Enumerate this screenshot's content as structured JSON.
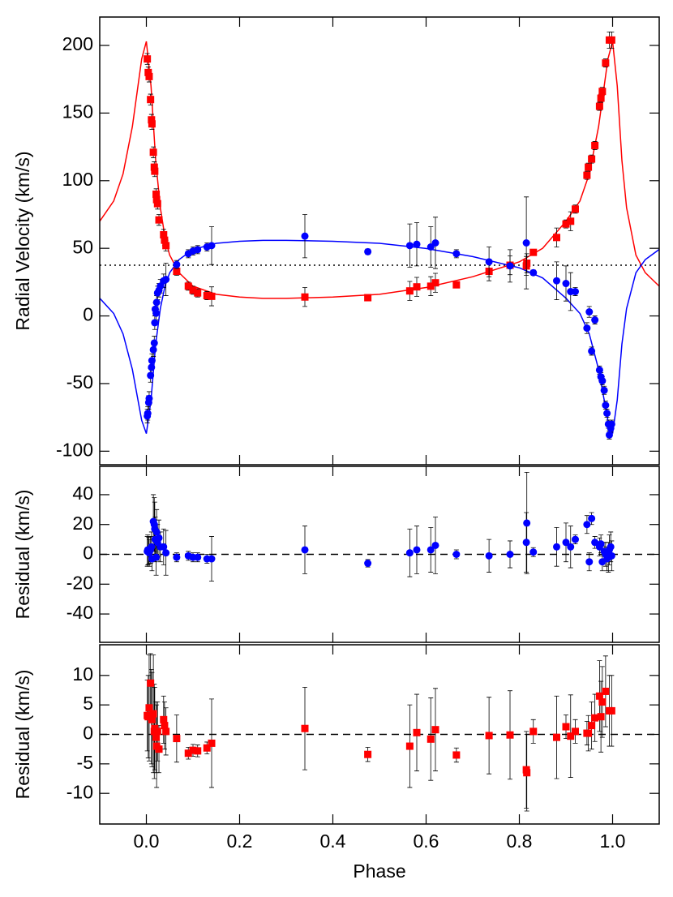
{
  "chart_data": [
    {
      "type": "scatter",
      "ylabel": "Radial Velocity (km/s)",
      "xlim": [
        -0.1,
        1.1
      ],
      "ylim": [
        -110,
        221
      ],
      "yticks": [
        -100,
        -50,
        0,
        50,
        100,
        150,
        200
      ],
      "hline": {
        "value": 37.5,
        "style": "dotted"
      },
      "series": [
        {
          "type": "line",
          "color": "#ff0000",
          "x": [
            -0.1,
            -0.07,
            -0.05,
            -0.03,
            -0.02,
            -0.01,
            0.0,
            0.01,
            0.02,
            0.03,
            0.04,
            0.05,
            0.07,
            0.1,
            0.15,
            0.2,
            0.25,
            0.3,
            0.4,
            0.5,
            0.6,
            0.7,
            0.8,
            0.85,
            0.9,
            0.93,
            0.95,
            0.97,
            0.98,
            0.99,
            1.0,
            1.01,
            1.02,
            1.03,
            1.05,
            1.07,
            1.1
          ],
          "values": [
            70,
            85,
            105,
            140,
            165,
            190,
            203,
            170,
            115,
            80,
            58,
            45,
            32,
            22,
            16,
            14,
            13,
            13,
            14,
            16,
            21,
            29,
            40,
            50,
            70,
            85,
            105,
            140,
            165,
            190,
            203,
            170,
            115,
            80,
            45,
            32,
            22
          ]
        },
        {
          "type": "line",
          "color": "#0000ff",
          "x": [
            -0.1,
            -0.07,
            -0.05,
            -0.03,
            -0.02,
            -0.01,
            0.0,
            0.01,
            0.02,
            0.03,
            0.04,
            0.05,
            0.07,
            0.1,
            0.15,
            0.2,
            0.25,
            0.3,
            0.4,
            0.5,
            0.6,
            0.7,
            0.8,
            0.85,
            0.9,
            0.93,
            0.95,
            0.97,
            0.98,
            0.99,
            1.0,
            1.01,
            1.02,
            1.03,
            1.05,
            1.07,
            1.1
          ],
          "values": [
            13.1,
            1.8,
            -13.3,
            -39.6,
            -58.4,
            -77.2,
            -87.0,
            -62.1,
            -20.8,
            5.5,
            22.1,
            31.9,
            41.6,
            49.2,
            53.7,
            55.2,
            55.9,
            55.9,
            55.2,
            53.7,
            49.9,
            43.9,
            35.6,
            28.1,
            13.1,
            1.8,
            -13.3,
            -39.6,
            -58.4,
            -77.2,
            -87.0,
            -62.1,
            -20.8,
            5.5,
            31.9,
            41.6,
            49.2
          ]
        },
        {
          "type": "scatter",
          "marker": "square",
          "color": "#ff0000",
          "x": [
            0.002,
            0.004,
            0.006,
            0.009,
            0.011,
            0.012,
            0.015,
            0.017,
            0.018,
            0.021,
            0.022,
            0.024,
            0.027,
            0.037,
            0.039,
            0.042,
            0.065,
            0.09,
            0.1,
            0.11,
            0.13,
            0.14,
            0.34,
            0.475,
            0.565,
            0.58,
            0.61,
            0.62,
            0.665,
            0.735,
            0.78,
            0.815,
            0.816,
            0.83,
            0.88,
            0.9,
            0.91,
            0.92,
            0.945,
            0.948,
            0.955,
            0.962,
            0.972,
            0.975,
            0.978,
            0.985,
            0.993,
            0.998
          ],
          "values": [
            190,
            180,
            177,
            160,
            145,
            142,
            121,
            110,
            107,
            90,
            86,
            83,
            71,
            60,
            56,
            52,
            33,
            22,
            19,
            17,
            15,
            14.5,
            14,
            13.5,
            18.5,
            21.5,
            22,
            24.5,
            23,
            33,
            37.5,
            37,
            39,
            47,
            58,
            68,
            70,
            79,
            104,
            110,
            116,
            126,
            155,
            161,
            166,
            187,
            204,
            204
          ],
          "errors": [
            4,
            4,
            4,
            4,
            4,
            4,
            4,
            4,
            4,
            4,
            4,
            4,
            4,
            4,
            4,
            4,
            3,
            3,
            3,
            3,
            3,
            7,
            7,
            2,
            7,
            7,
            7,
            7,
            2,
            7,
            7,
            7,
            7,
            2,
            7,
            3,
            7,
            3,
            3,
            3,
            3,
            3,
            3,
            3,
            3,
            3,
            6,
            6
          ]
        },
        {
          "type": "scatter",
          "marker": "circle",
          "color": "#0000ff",
          "x": [
            0.002,
            0.003,
            0.005,
            0.006,
            0.009,
            0.011,
            0.012,
            0.015,
            0.017,
            0.018,
            0.019,
            0.021,
            0.022,
            0.024,
            0.027,
            0.03,
            0.037,
            0.042,
            0.065,
            0.09,
            0.1,
            0.11,
            0.13,
            0.14,
            0.34,
            0.475,
            0.565,
            0.58,
            0.61,
            0.62,
            0.665,
            0.735,
            0.78,
            0.815,
            0.83,
            0.88,
            0.9,
            0.91,
            0.92,
            0.945,
            0.95,
            0.955,
            0.962,
            0.972,
            0.975,
            0.978,
            0.982,
            0.985,
            0.988,
            0.991,
            0.993,
            0.996,
            0.998
          ],
          "values": [
            -74,
            -72,
            -64,
            -61,
            -44,
            -38,
            -33,
            -25,
            -20,
            -5,
            5,
            2,
            10,
            17,
            19,
            22,
            26,
            27,
            38,
            46,
            48,
            49,
            51,
            52,
            59,
            47.5,
            52,
            53,
            51,
            54,
            46,
            40,
            37,
            54,
            32,
            26,
            24,
            18,
            18,
            -9,
            3,
            -26,
            -3,
            -40,
            -45,
            -48,
            -55,
            -66,
            -72,
            -80,
            -88,
            -83,
            -80
          ],
          "errors": [
            5,
            5,
            5,
            5,
            5,
            5,
            5,
            5,
            5,
            5,
            5,
            5,
            5,
            5,
            5,
            5,
            5,
            12,
            3,
            3,
            3,
            3,
            3,
            14,
            16,
            2,
            16,
            16,
            15,
            19,
            3,
            11,
            12,
            34,
            2,
            14,
            13,
            14,
            3,
            4,
            4,
            3,
            3,
            3,
            3,
            3,
            3,
            3,
            3,
            3,
            3,
            3,
            3
          ]
        }
      ]
    },
    {
      "type": "scatter",
      "ylabel": "Residual (km/s)",
      "xlim": [
        -0.1,
        1.1
      ],
      "ylim": [
        -59,
        59
      ],
      "yticks": [
        -40,
        -20,
        0,
        20,
        40
      ],
      "hline": {
        "value": 0,
        "style": "dashed"
      },
      "series": [
        {
          "type": "scatter",
          "marker": "circle",
          "color": "#0000ff",
          "x": [
            0.002,
            0.003,
            0.005,
            0.006,
            0.009,
            0.011,
            0.012,
            0.015,
            0.017,
            0.018,
            0.019,
            0.021,
            0.022,
            0.024,
            0.027,
            0.03,
            0.037,
            0.042,
            0.065,
            0.09,
            0.1,
            0.11,
            0.13,
            0.14,
            0.34,
            0.475,
            0.565,
            0.58,
            0.61,
            0.62,
            0.665,
            0.735,
            0.78,
            0.815,
            0.816,
            0.83,
            0.88,
            0.9,
            0.91,
            0.92,
            0.945,
            0.95,
            0.955,
            0.962,
            0.972,
            0.975,
            0.978,
            0.982,
            0.985,
            0.988,
            0.991,
            0.993,
            0.996,
            0.998
          ],
          "values": [
            2,
            3,
            2.5,
            1,
            3,
            5,
            -3,
            22,
            20,
            17,
            10,
            -2,
            15,
            8,
            11,
            5,
            5,
            1,
            -2,
            -1,
            -2,
            -2,
            -3,
            -3,
            3,
            -6,
            1,
            3,
            3,
            6,
            0,
            -1,
            0,
            8,
            21,
            1.5,
            5,
            8,
            5,
            10,
            20,
            -5,
            24,
            8,
            5,
            7,
            -5,
            2,
            0,
            -3,
            -2,
            3,
            5,
            -1
          ],
          "errors": [
            10,
            10,
            9,
            9,
            9,
            10,
            8,
            18,
            18,
            18,
            15,
            12,
            15,
            12,
            12,
            10,
            12,
            15,
            3,
            3,
            3,
            3,
            3,
            15,
            16,
            2.5,
            16,
            16,
            15,
            19,
            3,
            11,
            9,
            20,
            34,
            3,
            13,
            13,
            14,
            3,
            6,
            6,
            4,
            4,
            6,
            6,
            6,
            6,
            8,
            8,
            10,
            10,
            10,
            10
          ]
        }
      ]
    },
    {
      "type": "scatter",
      "ylabel": "Residual (km/s)",
      "xlabel": "Phase",
      "xlim": [
        -0.1,
        1.1
      ],
      "ylim": [
        -15.2,
        15.2
      ],
      "xticks": [
        {
          "value": 0,
          "label": "0.0"
        },
        0.2,
        0.4,
        0.6,
        0.8,
        {
          "value": 1,
          "label": "1.0"
        }
      ],
      "yticks": [
        -10,
        -5,
        0,
        5,
        10
      ],
      "hline": {
        "value": 0,
        "style": "dashed"
      },
      "series": [
        {
          "type": "scatter",
          "marker": "square",
          "color": "#ff0000",
          "x": [
            0.002,
            0.004,
            0.006,
            0.009,
            0.011,
            0.012,
            0.015,
            0.017,
            0.018,
            0.021,
            0.022,
            0.024,
            0.027,
            0.037,
            0.039,
            0.042,
            0.065,
            0.09,
            0.1,
            0.11,
            0.13,
            0.14,
            0.34,
            0.475,
            0.565,
            0.58,
            0.61,
            0.62,
            0.665,
            0.735,
            0.78,
            0.815,
            0.816,
            0.83,
            0.88,
            0.9,
            0.91,
            0.92,
            0.945,
            0.948,
            0.955,
            0.962,
            0.972,
            0.975,
            0.978,
            0.985,
            0.993,
            0.998
          ],
          "values": [
            3.2,
            3,
            4.5,
            8.7,
            3,
            2.5,
            3.5,
            0.5,
            1,
            -0.5,
            -2,
            0.5,
            -2.5,
            2.5,
            1.5,
            0.5,
            -0.7,
            -3.2,
            -2.7,
            -2.8,
            -2.3,
            -1.5,
            1,
            -3.4,
            -2,
            0.3,
            -0.8,
            0.8,
            -3.5,
            -0.2,
            -0.1,
            -6,
            -6.5,
            0.5,
            -0.5,
            1.3,
            -0.3,
            0.5,
            0.2,
            0.2,
            1.5,
            2.8,
            6.5,
            3,
            5.5,
            7.3,
            4,
            4
          ],
          "errors": [
            6,
            7,
            9,
            5,
            8,
            8,
            10,
            8,
            7,
            6,
            7,
            5,
            4,
            4,
            4,
            4,
            4,
            1,
            1,
            1,
            1,
            7.5,
            7,
            1.2,
            7,
            6.5,
            7,
            7,
            1.2,
            6.5,
            7.5,
            6.5,
            6.5,
            2,
            7,
            2,
            7,
            2,
            2,
            3,
            4,
            4,
            6,
            6,
            6,
            6,
            6,
            6
          ]
        }
      ]
    }
  ]
}
